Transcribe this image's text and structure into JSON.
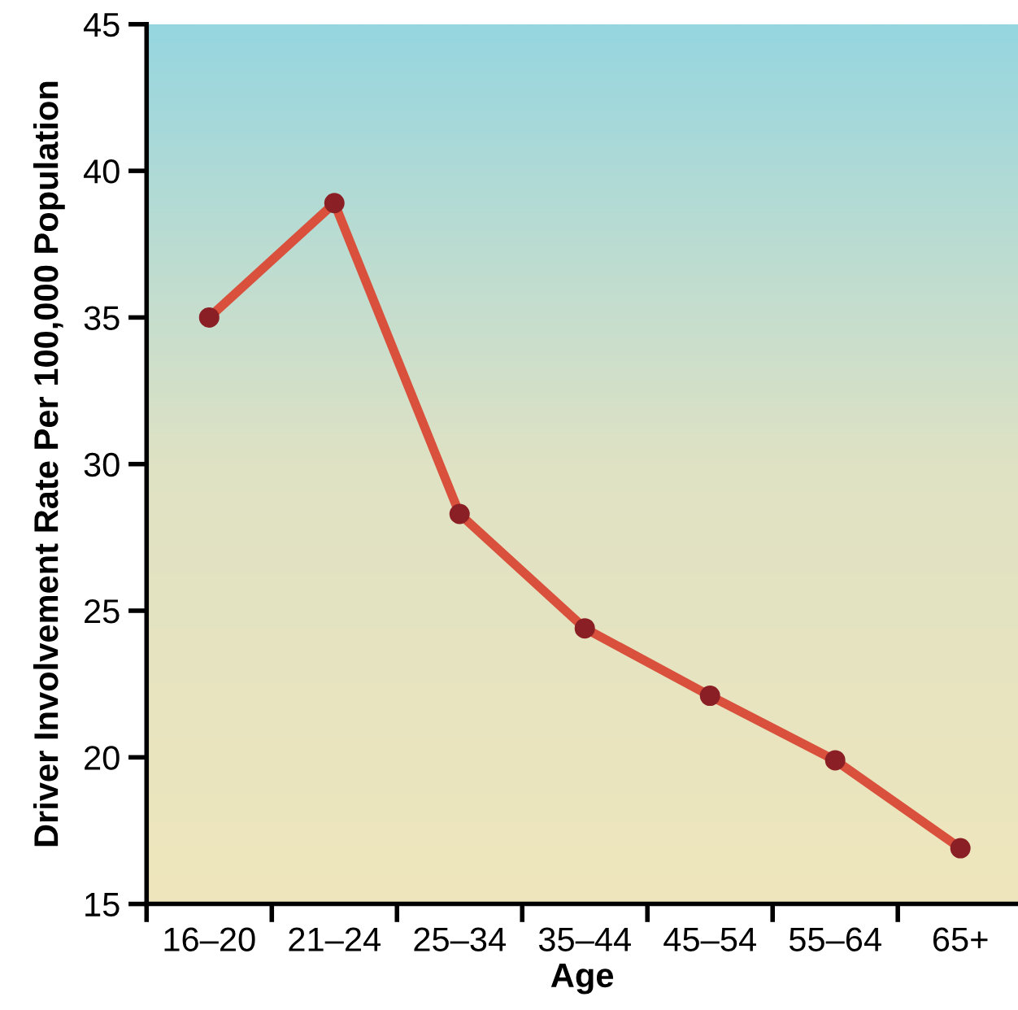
{
  "chart_data": {
    "type": "line",
    "xlabel": "Age",
    "ylabel": "Driver Involvement Rate Per 100,000 Population",
    "categories": [
      "16–20",
      "21–24",
      "25–34",
      "35–44",
      "45–54",
      "55–64",
      "65+"
    ],
    "series": [
      {
        "color": "#d9503c",
        "values": [
          35.0,
          38.9,
          28.3,
          24.4,
          22.1,
          19.9,
          16.9
        ]
      }
    ],
    "marker": "circle",
    "ylim": [
      15,
      45
    ],
    "yticks": [
      15,
      20,
      25,
      30,
      35,
      40,
      45
    ],
    "grid": false
  }
}
